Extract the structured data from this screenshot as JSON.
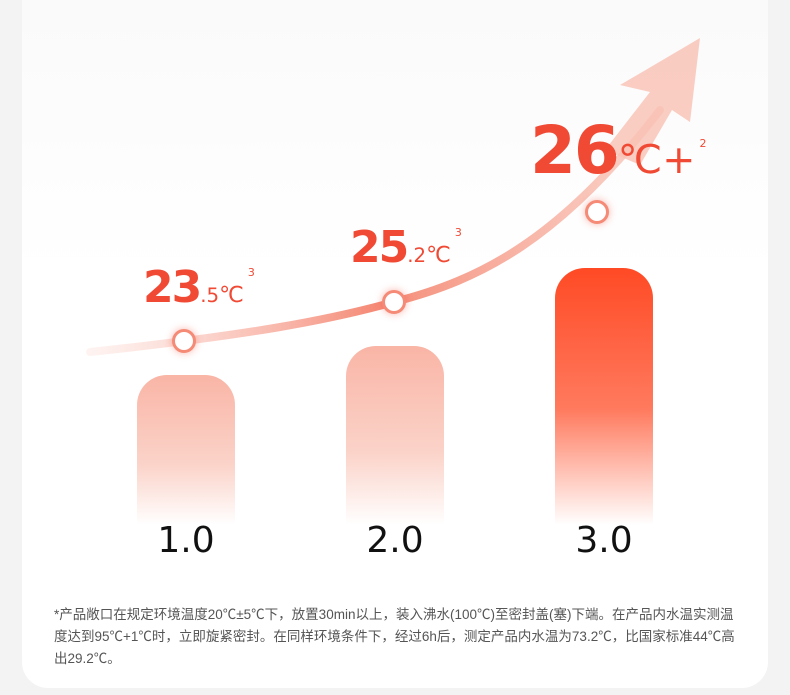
{
  "chart_data": {
    "type": "bar",
    "categories": [
      "1.0",
      "2.0",
      "3.0"
    ],
    "values": [
      23.5,
      25.2,
      26
    ],
    "labels": [
      {
        "int": "23",
        "dec": ".5",
        "unit": "℃",
        "note": "3"
      },
      {
        "int": "25",
        "dec": ".2",
        "unit": "℃",
        "note": "3"
      },
      {
        "int": "26",
        "dec": "",
        "unit": "℃+",
        "note": "2"
      }
    ],
    "colors": {
      "accent": "#f04a35",
      "bar_light": "#f9b5a6",
      "bar_strong": "#ff4a25"
    }
  },
  "footnote": "*产品敞口在规定环境温度20℃±5℃下，放置30min以上，装入沸水(100℃)至密封盖(塞)下端。在产品内水温实测温度达到95℃+1℃时，立即旋紧密封。在同样环境条件下，经过6h后，测定产品内水温为73.2℃，比国家标准44℃高出29.2℃。"
}
